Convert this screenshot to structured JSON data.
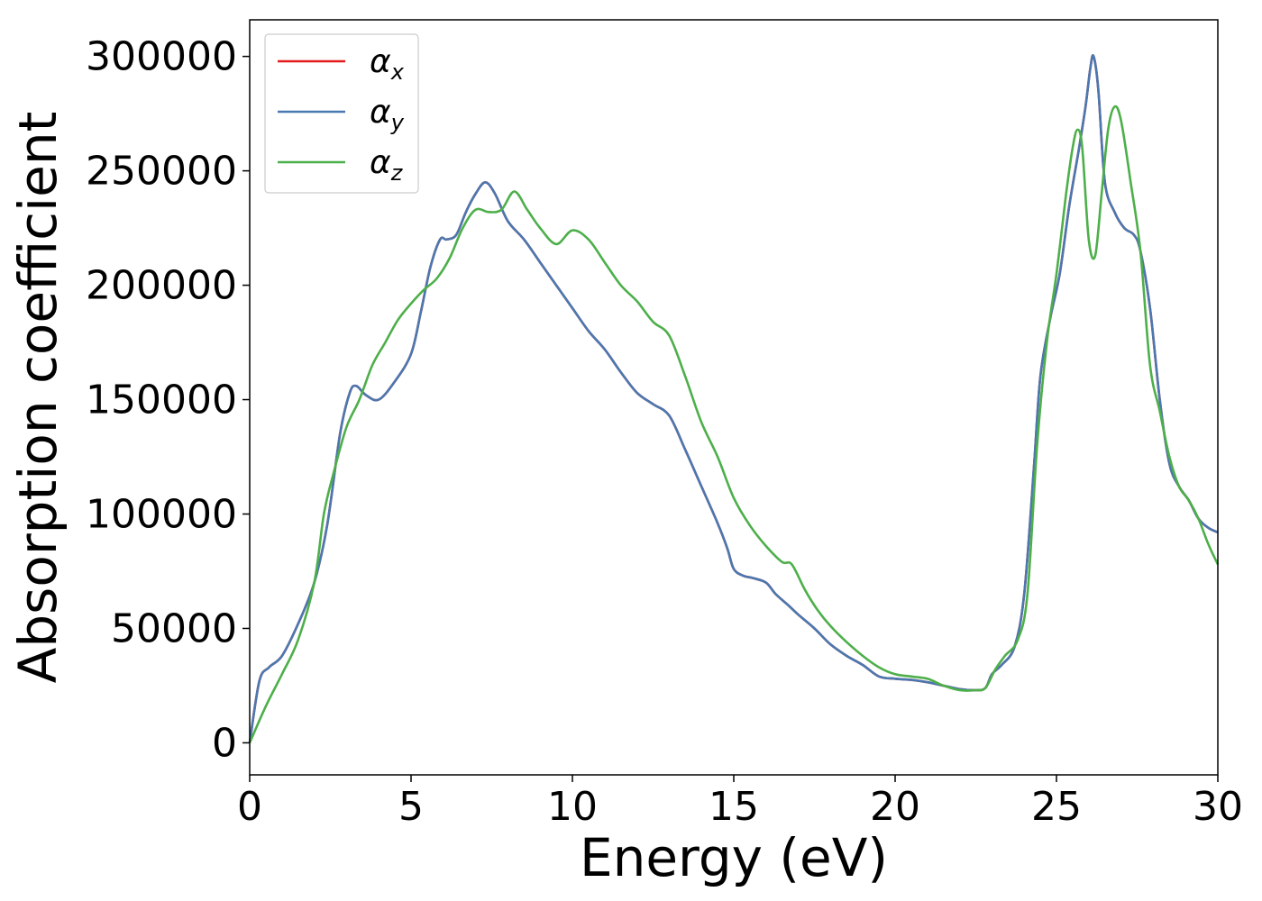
{
  "chart_data": {
    "type": "line",
    "title": "",
    "xlabel": "Energy (eV)",
    "ylabel": "Absorption coefficient",
    "xlim": [
      0,
      30
    ],
    "ylim": [
      -14000,
      316000
    ],
    "xticks": [
      0,
      5,
      10,
      15,
      20,
      25,
      30
    ],
    "xtick_labels": [
      "0",
      "5",
      "10",
      "15",
      "20",
      "25",
      "30"
    ],
    "yticks": [
      0,
      50000,
      100000,
      150000,
      200000,
      250000,
      300000
    ],
    "ytick_labels": [
      "0",
      "50000",
      "100000",
      "150000",
      "200000",
      "250000",
      "300000"
    ],
    "grid": false,
    "legend_position": "top-left",
    "series": [
      {
        "name": "αx",
        "name_base": "α",
        "name_sub": "x",
        "color": "#e41a1c",
        "x": [
          0,
          0.3,
          0.6,
          1.0,
          1.5,
          2.0,
          2.4,
          2.8,
          3.1,
          3.3,
          3.6,
          4.0,
          4.5,
          5.0,
          5.3,
          5.6,
          5.9,
          6.1,
          6.4,
          6.7,
          7.0,
          7.3,
          7.6,
          8.0,
          8.5,
          9.0,
          9.5,
          10.0,
          10.5,
          11.0,
          11.5,
          12.0,
          12.5,
          13.0,
          13.5,
          14.0,
          14.5,
          14.8,
          15.0,
          15.3,
          15.6,
          16.0,
          16.3,
          16.7,
          17.0,
          17.5,
          18.0,
          18.5,
          19.0,
          19.5,
          20.0,
          20.5,
          21.0,
          21.5,
          22.0,
          22.5,
          22.8,
          23.0,
          23.3,
          23.7,
          24.0,
          24.3,
          24.5,
          24.8,
          25.1,
          25.4,
          25.7,
          25.9,
          26.05,
          26.15,
          26.3,
          26.5,
          26.8,
          27.1,
          27.4,
          27.6,
          27.9,
          28.2,
          28.5,
          28.8,
          29.1,
          29.4,
          29.7,
          30.0
        ],
        "values": [
          0,
          27000,
          33000,
          38000,
          52000,
          70000,
          95000,
          135000,
          153000,
          156000,
          152000,
          150000,
          158000,
          170000,
          188000,
          208000,
          220000,
          220000,
          222000,
          232000,
          240000,
          245000,
          240000,
          228000,
          220000,
          210000,
          200000,
          190000,
          180000,
          172000,
          162000,
          153000,
          148000,
          143000,
          128000,
          112000,
          96000,
          85000,
          76000,
          73000,
          72000,
          70000,
          65000,
          60000,
          56000,
          50000,
          43000,
          38000,
          34000,
          29000,
          28000,
          27500,
          26500,
          25000,
          23500,
          23000,
          24000,
          30000,
          34000,
          42000,
          65000,
          120000,
          160000,
          185000,
          205000,
          235000,
          260000,
          278000,
          295000,
          300000,
          285000,
          245000,
          232000,
          225000,
          222000,
          215000,
          190000,
          150000,
          122000,
          112000,
          106000,
          98000,
          94000,
          92000
        ]
      },
      {
        "name": "αy",
        "name_base": "α",
        "name_sub": "y",
        "color": "#4a78b0",
        "x": [
          0,
          0.3,
          0.6,
          1.0,
          1.5,
          2.0,
          2.4,
          2.8,
          3.1,
          3.3,
          3.6,
          4.0,
          4.5,
          5.0,
          5.3,
          5.6,
          5.9,
          6.1,
          6.4,
          6.7,
          7.0,
          7.3,
          7.6,
          8.0,
          8.5,
          9.0,
          9.5,
          10.0,
          10.5,
          11.0,
          11.5,
          12.0,
          12.5,
          13.0,
          13.5,
          14.0,
          14.5,
          14.8,
          15.0,
          15.3,
          15.6,
          16.0,
          16.3,
          16.7,
          17.0,
          17.5,
          18.0,
          18.5,
          19.0,
          19.5,
          20.0,
          20.5,
          21.0,
          21.5,
          22.0,
          22.5,
          22.8,
          23.0,
          23.3,
          23.7,
          24.0,
          24.3,
          24.5,
          24.8,
          25.1,
          25.4,
          25.7,
          25.9,
          26.05,
          26.15,
          26.3,
          26.5,
          26.8,
          27.1,
          27.4,
          27.6,
          27.9,
          28.2,
          28.5,
          28.8,
          29.1,
          29.4,
          29.7,
          30.0
        ],
        "values": [
          0,
          27000,
          33000,
          38000,
          52000,
          70000,
          95000,
          135000,
          153000,
          156000,
          152000,
          150000,
          158000,
          170000,
          188000,
          208000,
          220000,
          220000,
          222000,
          232000,
          240000,
          245000,
          240000,
          228000,
          220000,
          210000,
          200000,
          190000,
          180000,
          172000,
          162000,
          153000,
          148000,
          143000,
          128000,
          112000,
          96000,
          85000,
          76000,
          73000,
          72000,
          70000,
          65000,
          60000,
          56000,
          50000,
          43000,
          38000,
          34000,
          29000,
          28000,
          27500,
          26500,
          25000,
          23500,
          23000,
          24000,
          30000,
          34000,
          42000,
          65000,
          120000,
          160000,
          185000,
          205000,
          235000,
          260000,
          278000,
          295000,
          300000,
          285000,
          245000,
          232000,
          225000,
          222000,
          215000,
          190000,
          150000,
          122000,
          112000,
          106000,
          98000,
          94000,
          92000
        ]
      },
      {
        "name": "αz",
        "name_base": "α",
        "name_sub": "z",
        "color": "#4daf4a",
        "x": [
          0,
          0.5,
          1.0,
          1.5,
          2.0,
          2.3,
          2.6,
          3.0,
          3.4,
          3.8,
          4.2,
          4.6,
          5.0,
          5.4,
          5.8,
          6.2,
          6.6,
          7.0,
          7.4,
          7.8,
          8.2,
          8.6,
          9.0,
          9.5,
          10.0,
          10.5,
          11.0,
          11.5,
          12.0,
          12.5,
          13.0,
          13.5,
          14.0,
          14.5,
          15.0,
          15.5,
          16.0,
          16.5,
          16.8,
          17.2,
          17.6,
          18.0,
          18.5,
          19.0,
          19.5,
          20.0,
          20.5,
          21.0,
          21.5,
          22.0,
          22.5,
          22.8,
          23.1,
          23.4,
          23.8,
          24.1,
          24.4,
          24.7,
          25.0,
          25.3,
          25.5,
          25.65,
          25.8,
          26.0,
          26.2,
          26.4,
          26.6,
          26.8,
          27.0,
          27.3,
          27.6,
          27.9,
          28.2,
          28.5,
          28.8,
          29.1,
          29.4,
          29.7,
          30.0
        ],
        "values": [
          0,
          16000,
          30000,
          45000,
          70000,
          100000,
          118000,
          138000,
          150000,
          165000,
          175000,
          185000,
          192000,
          198000,
          203000,
          212000,
          225000,
          233000,
          232000,
          233000,
          241000,
          233000,
          225000,
          218000,
          224000,
          220000,
          210000,
          200000,
          193000,
          184000,
          178000,
          160000,
          140000,
          125000,
          107000,
          95000,
          86000,
          79000,
          78000,
          67000,
          58000,
          51000,
          44000,
          38000,
          33000,
          30000,
          29000,
          28000,
          25000,
          23000,
          23000,
          24000,
          32000,
          38000,
          45000,
          65000,
          130000,
          175000,
          205000,
          240000,
          260000,
          268000,
          260000,
          220000,
          213000,
          240000,
          268000,
          278000,
          272000,
          245000,
          215000,
          165000,
          145000,
          125000,
          112000,
          106000,
          98000,
          87000,
          78000
        ]
      }
    ]
  }
}
